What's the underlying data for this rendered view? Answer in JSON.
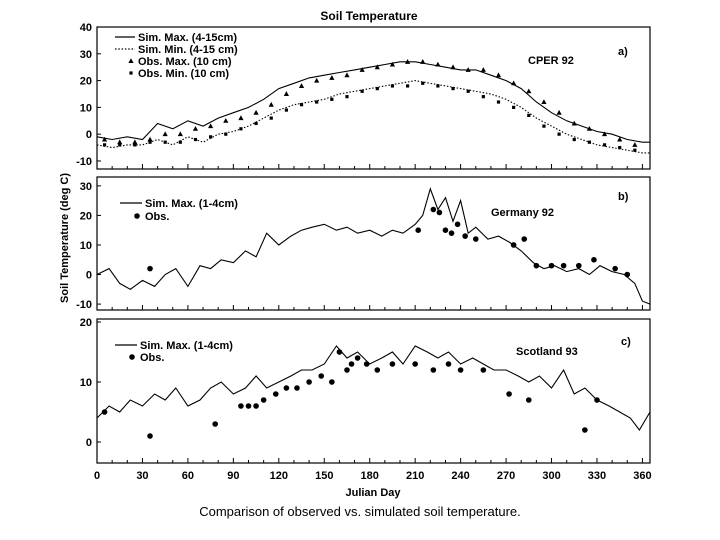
{
  "figure_title": "Soil Temperature",
  "ylabel": "Soil Temperature (deg C)",
  "xlabel": "Julian Day",
  "caption": "Comparison of observed vs. simulated soil temperature.",
  "chart_data": [
    {
      "type": "line",
      "panel_letter": "a)",
      "site": "CPER 92",
      "title": "Soil Temperature",
      "xlim": [
        0,
        365
      ],
      "ylim": [
        -13,
        40
      ],
      "yticks": [
        -10,
        0,
        10,
        20,
        30,
        40
      ],
      "xticks": [],
      "series": [
        {
          "name": "Sim. Max. (4-15cm)",
          "style": "solid",
          "x": [
            0,
            10,
            20,
            30,
            40,
            50,
            60,
            70,
            80,
            90,
            100,
            110,
            120,
            130,
            140,
            150,
            160,
            170,
            180,
            190,
            200,
            210,
            220,
            230,
            240,
            250,
            260,
            270,
            280,
            290,
            300,
            310,
            320,
            330,
            340,
            350,
            360,
            365
          ],
          "y": [
            -1,
            -2,
            -1,
            -2,
            4,
            2,
            5,
            3,
            6,
            8,
            10,
            13,
            17,
            19,
            21,
            22,
            23,
            24,
            25,
            26,
            27,
            27,
            26,
            25,
            24,
            24,
            22,
            20,
            17,
            12,
            8,
            5,
            3,
            1,
            0,
            -2,
            -3,
            -3
          ]
        },
        {
          "name": "Sim. Min. (4-15 cm)",
          "style": "dotted",
          "x": [
            0,
            10,
            20,
            30,
            40,
            50,
            60,
            70,
            80,
            90,
            100,
            110,
            120,
            130,
            140,
            150,
            160,
            170,
            180,
            190,
            200,
            210,
            220,
            230,
            240,
            250,
            260,
            270,
            280,
            290,
            300,
            310,
            320,
            330,
            340,
            350,
            360,
            365
          ],
          "y": [
            -4,
            -5,
            -4,
            -4,
            -2,
            -4,
            -1,
            -3,
            0,
            1,
            3,
            6,
            9,
            11,
            12,
            13,
            15,
            16,
            17,
            18,
            19,
            20,
            19,
            18,
            17,
            16,
            15,
            13,
            10,
            6,
            3,
            0,
            -2,
            -4,
            -5,
            -6,
            -7,
            -7
          ]
        },
        {
          "name": "Obs. Max. (10 cm)",
          "style": "triangle-markers",
          "x": [
            5,
            15,
            25,
            35,
            45,
            55,
            65,
            75,
            85,
            95,
            105,
            115,
            125,
            135,
            145,
            155,
            165,
            175,
            185,
            195,
            205,
            215,
            225,
            235,
            245,
            255,
            265,
            275,
            285,
            295,
            305,
            315,
            325,
            335,
            345,
            355
          ],
          "y": [
            -2,
            -3,
            -3,
            -2,
            0,
            0,
            2,
            3,
            5,
            6,
            8,
            11,
            15,
            18,
            20,
            21,
            22,
            24,
            25,
            26,
            27,
            27,
            26,
            25,
            24,
            24,
            22,
            19,
            16,
            12,
            8,
            4,
            2,
            0,
            -2,
            -4
          ]
        },
        {
          "name": "Obs. Min. (10 cm)",
          "style": "square-markers",
          "x": [
            5,
            15,
            25,
            35,
            45,
            55,
            65,
            75,
            85,
            95,
            105,
            115,
            125,
            135,
            145,
            155,
            165,
            175,
            185,
            195,
            205,
            215,
            225,
            235,
            245,
            255,
            265,
            275,
            285,
            295,
            305,
            315,
            325,
            335,
            345,
            355
          ],
          "y": [
            -4,
            -4,
            -4,
            -3,
            -3,
            -3,
            -2,
            -1,
            0,
            2,
            4,
            6,
            9,
            11,
            12,
            13,
            14,
            16,
            17,
            18,
            18,
            19,
            18,
            17,
            16,
            14,
            12,
            10,
            7,
            3,
            0,
            -2,
            -3,
            -4,
            -5,
            -6
          ]
        }
      ],
      "legend_position": "top-left"
    },
    {
      "type": "line",
      "panel_letter": "b)",
      "site": "Germany 92",
      "xlim": [
        0,
        365
      ],
      "ylim": [
        -12,
        33
      ],
      "yticks": [
        -10,
        0,
        10,
        20,
        30
      ],
      "xticks": [],
      "series": [
        {
          "name": "Sim. Max. (1-4cm)",
          "style": "solid",
          "x": [
            0,
            8,
            15,
            22,
            30,
            38,
            45,
            52,
            60,
            68,
            75,
            82,
            90,
            98,
            105,
            112,
            120,
            128,
            135,
            142,
            150,
            158,
            165,
            172,
            180,
            188,
            195,
            202,
            210,
            215,
            220,
            225,
            230,
            235,
            240,
            245,
            250,
            258,
            265,
            272,
            280,
            288,
            295,
            302,
            310,
            318,
            325,
            332,
            340,
            348,
            355,
            360,
            365
          ],
          "y": [
            0,
            2,
            -3,
            -5,
            -2,
            -4,
            0,
            2,
            -4,
            3,
            2,
            5,
            4,
            8,
            6,
            14,
            10,
            13,
            15,
            16,
            17,
            15,
            16,
            14,
            15,
            13,
            15,
            14,
            17,
            20,
            29,
            22,
            26,
            18,
            25,
            14,
            16,
            12,
            13,
            11,
            8,
            4,
            2,
            3,
            1,
            2,
            0,
            3,
            1,
            0,
            -3,
            -9,
            -10
          ]
        },
        {
          "name": "Obs.",
          "style": "circle-markers",
          "x": [
            35,
            212,
            222,
            226,
            230,
            234,
            238,
            243,
            250,
            275,
            282,
            290,
            300,
            308,
            318,
            328,
            342,
            350
          ],
          "y": [
            2,
            15,
            22,
            21,
            15,
            14,
            17,
            13,
            12,
            10,
            12,
            3,
            3,
            3,
            3,
            5,
            2,
            0
          ],
          "marker": "circle"
        }
      ],
      "legend_position": "top-left"
    },
    {
      "type": "line",
      "panel_letter": "c)",
      "site": "Scotland 93",
      "xlim": [
        0,
        365
      ],
      "ylim": [
        -3.5,
        20.5
      ],
      "yticks": [
        0,
        10,
        20
      ],
      "xticks": [
        0,
        30,
        60,
        90,
        120,
        150,
        180,
        210,
        240,
        270,
        300,
        330,
        360
      ],
      "series": [
        {
          "name": "Sim. Max. (1-4cm)",
          "style": "solid",
          "x": [
            0,
            8,
            15,
            22,
            30,
            38,
            45,
            52,
            60,
            68,
            75,
            82,
            90,
            98,
            105,
            112,
            120,
            128,
            135,
            142,
            150,
            158,
            165,
            172,
            180,
            188,
            195,
            202,
            210,
            218,
            225,
            232,
            240,
            248,
            255,
            262,
            270,
            278,
            285,
            292,
            300,
            308,
            315,
            322,
            330,
            338,
            345,
            352,
            358,
            365
          ],
          "y": [
            4,
            6,
            5,
            7,
            6,
            8,
            7,
            9,
            6,
            7,
            9,
            10,
            8,
            9,
            11,
            9,
            10,
            11,
            12,
            12,
            13,
            16,
            14,
            15,
            13,
            14,
            15,
            13,
            16,
            15,
            14,
            15,
            13,
            14,
            13,
            12,
            12,
            11,
            10,
            11,
            9,
            12,
            8,
            9,
            7,
            6,
            5,
            4,
            2,
            5
          ]
        },
        {
          "name": "Obs.",
          "style": "circle-markers",
          "x": [
            5,
            35,
            78,
            95,
            100,
            105,
            110,
            118,
            125,
            132,
            140,
            148,
            155,
            160,
            165,
            168,
            172,
            178,
            185,
            195,
            210,
            222,
            232,
            240,
            255,
            272,
            285,
            322,
            330
          ],
          "y": [
            5,
            1,
            3,
            6,
            6,
            6,
            7,
            8,
            9,
            9,
            10,
            11,
            10,
            15,
            12,
            13,
            14,
            13,
            12,
            13,
            13,
            12,
            13,
            12,
            12,
            8,
            7,
            2,
            7
          ],
          "marker": "circle"
        }
      ],
      "legend_position": "top-left"
    }
  ]
}
